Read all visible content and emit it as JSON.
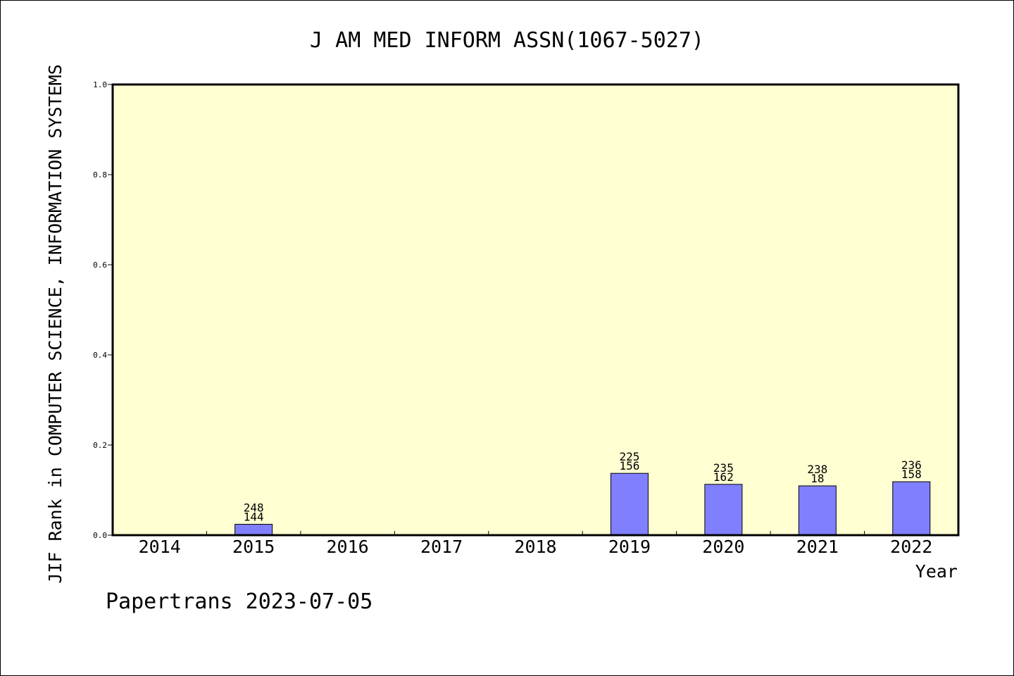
{
  "chart_data": {
    "type": "bar",
    "title": "J AM MED INFORM ASSN(1067-5027)",
    "xlabel": "Year",
    "ylabel": "JIF Rank in COMPUTER SCIENCE, INFORMATION SYSTEMS",
    "ylim": [
      0,
      1
    ],
    "yticks": [
      "0.0",
      "0.2",
      "0.4",
      "0.6",
      "0.8",
      "1.0"
    ],
    "categories": [
      "2014",
      "2015",
      "2016",
      "2017",
      "2018",
      "2019",
      "2020",
      "2021",
      "2022"
    ],
    "values": [
      null,
      0.0242,
      null,
      null,
      null,
      0.1372,
      0.1128,
      0.1094,
      0.1186
    ],
    "labels_top": [
      "",
      "248",
      "",
      "",
      "",
      "225",
      "235",
      "238",
      "236"
    ],
    "labels_bottom": [
      "",
      "144",
      "",
      "",
      "",
      "156",
      "162",
      "18",
      "158"
    ],
    "grid": false,
    "colors": {
      "plot_background": "#FFFFD2",
      "bar_fill": "#8080FF",
      "bar_stroke": "#000000"
    }
  },
  "footer": {
    "text": "Papertrans 2023-07-05"
  }
}
